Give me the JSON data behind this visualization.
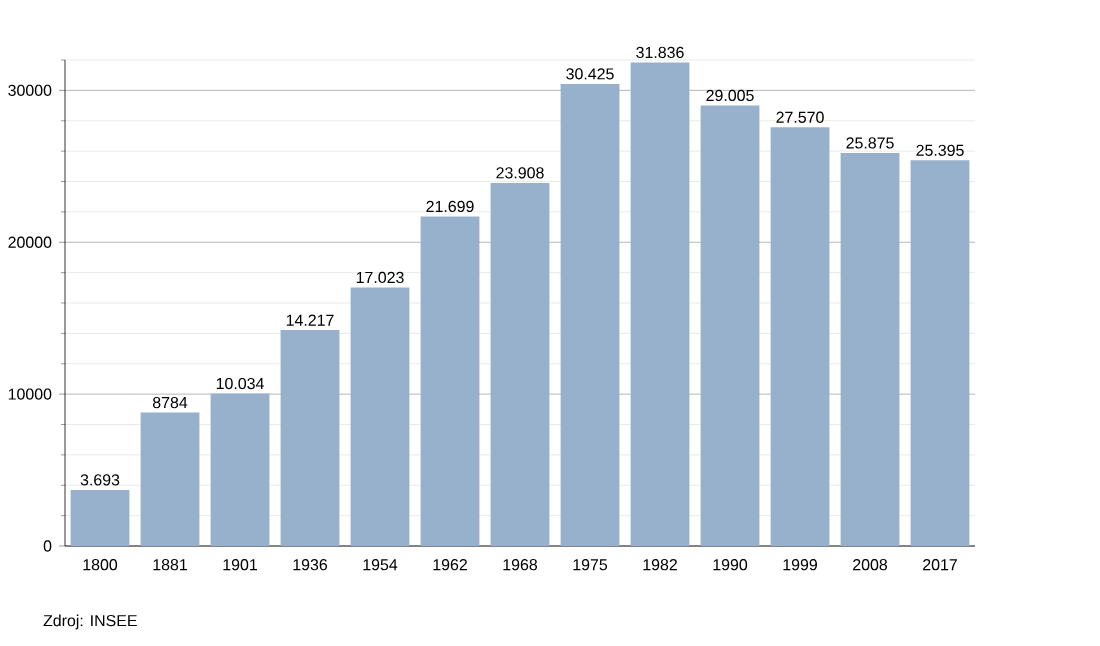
{
  "chart_data": {
    "type": "bar",
    "categories": [
      "1800",
      "1881",
      "1901",
      "1936",
      "1954",
      "1962",
      "1968",
      "1975",
      "1982",
      "1990",
      "1999",
      "2008",
      "2017"
    ],
    "values": [
      3693,
      8784,
      10034,
      14217,
      17023,
      21699,
      23908,
      30425,
      31836,
      29005,
      27570,
      25875,
      25395
    ],
    "value_labels": [
      "3.693",
      "8784",
      "10.034",
      "14.217",
      "17.023",
      "21.699",
      "23.908",
      "30.425",
      "31.836",
      "29.005",
      "27.570",
      "25.875",
      "25.395"
    ],
    "color": "#97b1cc",
    "ylim": [
      0,
      32000
    ],
    "yticks": [
      0,
      {
        "value": 2000,
        "label": null
      },
      {
        "value": 4000,
        "label": null
      },
      {
        "value": 6000,
        "label": null
      },
      {
        "value": 8000,
        "label": null
      },
      10000,
      {
        "value": 12000,
        "label": null
      },
      {
        "value": 14000,
        "label": null
      },
      {
        "value": 16000,
        "label": null
      },
      {
        "value": 18000,
        "label": null
      },
      20000,
      {
        "value": 22000,
        "label": null
      },
      {
        "value": 24000,
        "label": null
      },
      {
        "value": 26000,
        "label": null
      },
      {
        "value": 28000,
        "label": null
      },
      30000,
      {
        "value": 32000,
        "label": null
      }
    ],
    "grid": "y",
    "annotations": [
      "Zdroj: INSEE"
    ]
  }
}
